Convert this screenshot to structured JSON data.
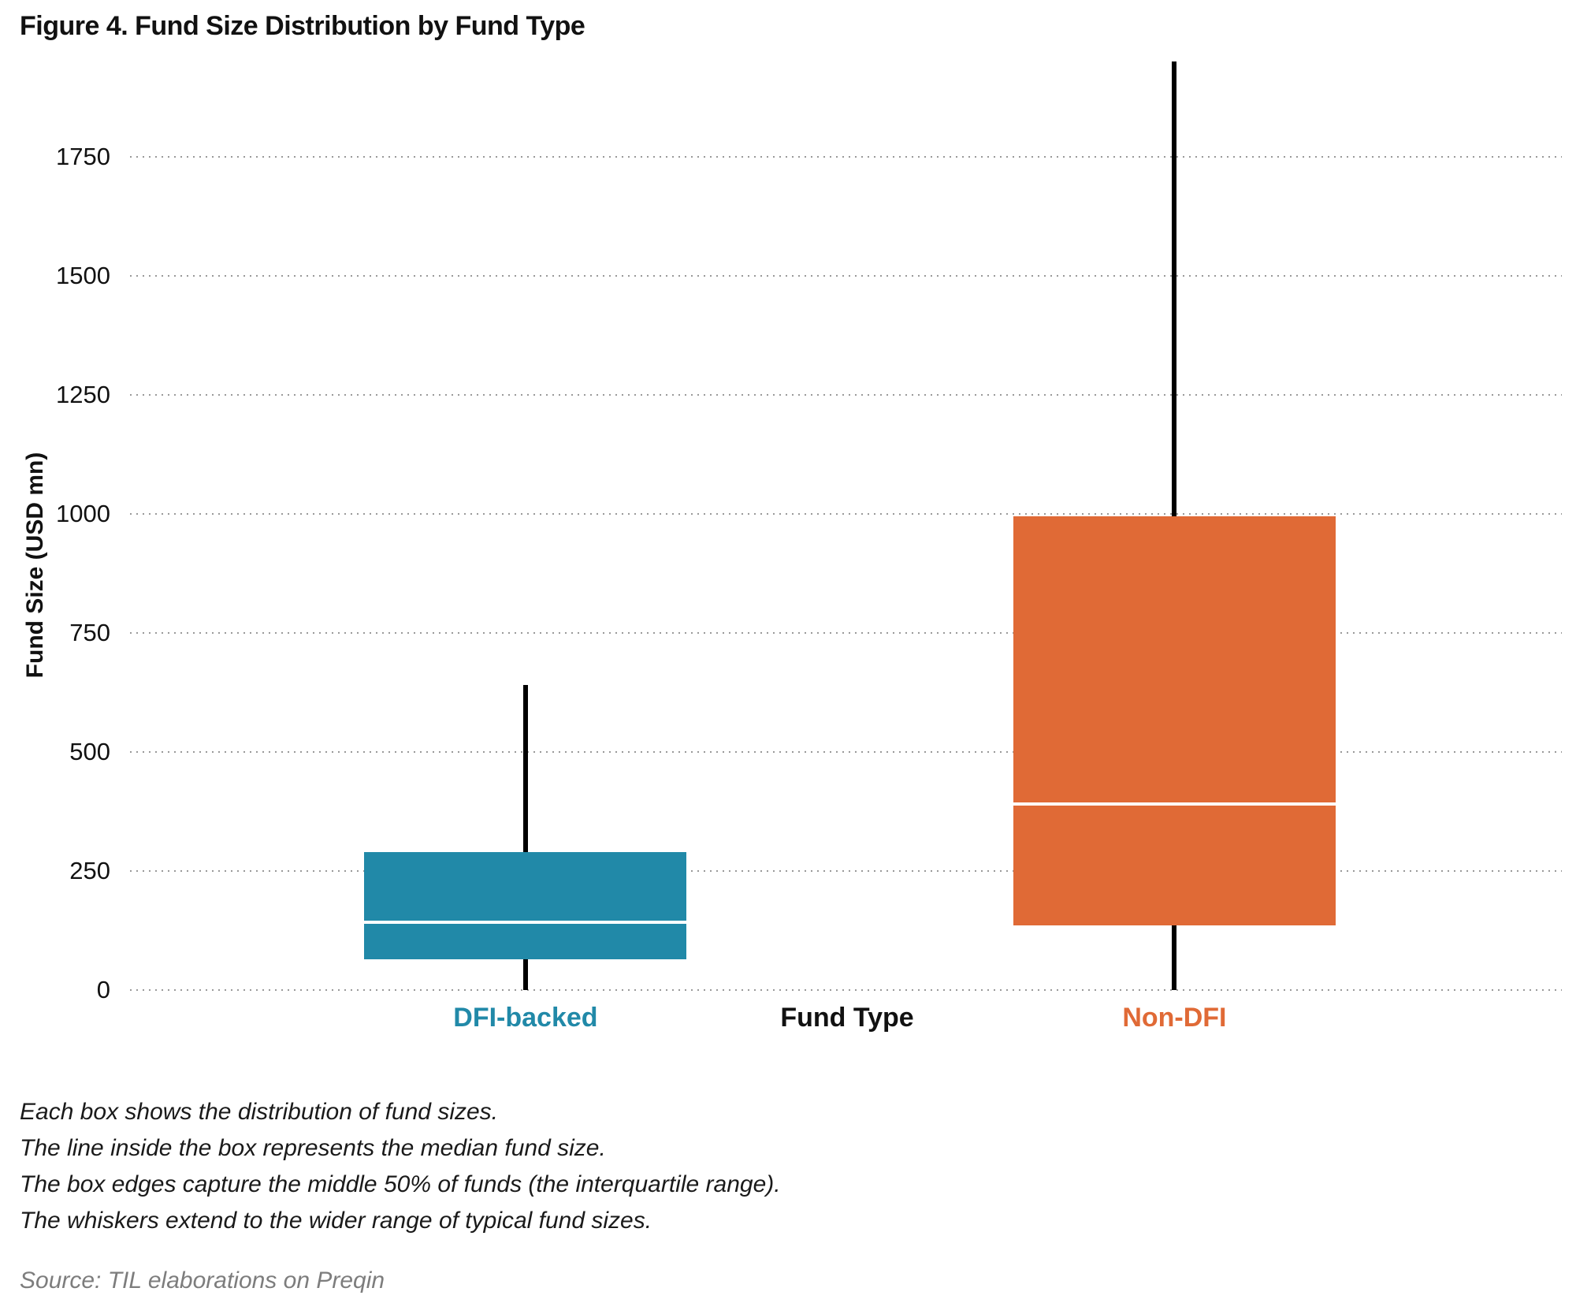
{
  "figure": {
    "title": "Figure 4. Fund Size Distribution by Fund Type"
  },
  "chart_data": {
    "type": "boxplot",
    "title": "Figure 4. Fund Size Distribution by Fund Type",
    "xlabel": "Fund Type",
    "ylabel": "Fund Size (USD mn)",
    "ylim": [
      0,
      1955
    ],
    "yticks": [
      0,
      250,
      500,
      750,
      1000,
      1250,
      1500,
      1750
    ],
    "grid": "horizontal-dotted",
    "legend": "none",
    "categories": [
      "DFI-backed",
      "Non-DFI"
    ],
    "series": [
      {
        "name": "DFI-backed",
        "color": "#2189A8",
        "whisker_low": 0,
        "q1": 65,
        "median": 142,
        "q3": 290,
        "whisker_high": 640,
        "whisker_high_clipped": false
      },
      {
        "name": "Non-DFI",
        "color": "#E06A36",
        "whisker_low": 0,
        "q1": 135,
        "median": 390,
        "q3": 995,
        "whisker_high": 1950,
        "whisker_high_clipped": true
      }
    ]
  },
  "notes": {
    "line1": "Each box shows the distribution of fund sizes.",
    "line2": "The line inside the box represents the median fund size.",
    "line3": "The box edges capture the middle 50% of funds (the interquartile range).",
    "line4": "The whiskers extend to the wider range of typical fund sizes."
  },
  "source": {
    "text": "Source: TIL elaborations on Preqin"
  }
}
